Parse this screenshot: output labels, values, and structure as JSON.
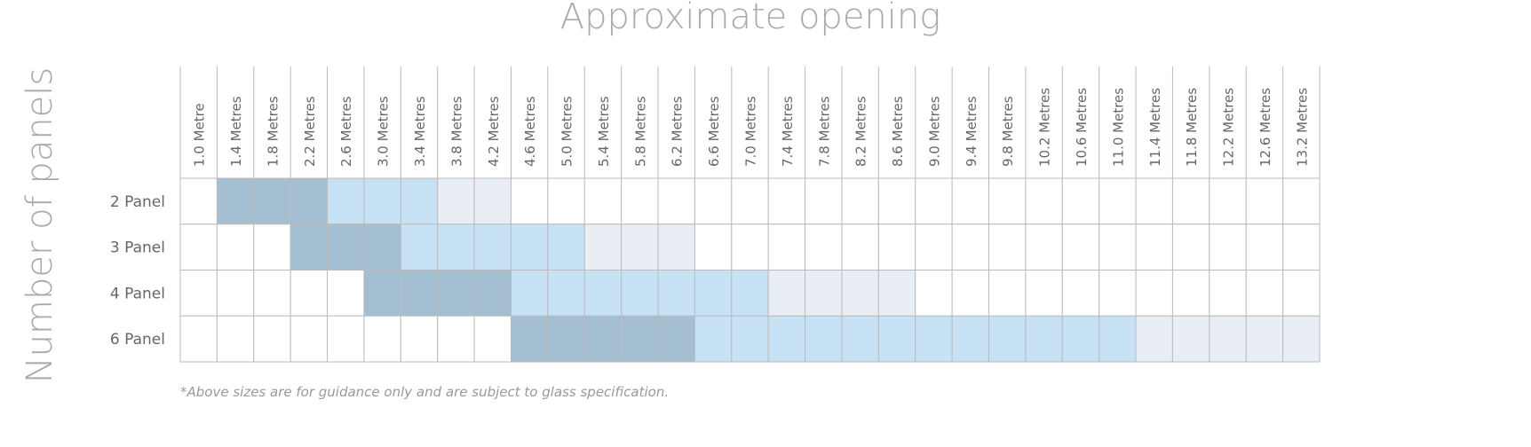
{
  "title": "Approximate opening",
  "side_label": "Number of panels",
  "footnote": "*Above sizes are for guidance only and are subject to glass specification.",
  "table": {
    "columns": [
      "1.0 Metre",
      "1.4 Metres",
      "1.8 Metres",
      "2.2 Metres",
      "2.6 Metres",
      "3.0 Metres",
      "3.4 Metres",
      "3.8 Metres",
      "4.2 Metres",
      "4.6 Metres",
      "5.0 Metres",
      "5.4 Metres",
      "5.8 Metres",
      "6.2 Metres",
      "6.6 Metres",
      "7.0 Metres",
      "7.4 Metres",
      "7.8 Metres",
      "8.2 Metres",
      "8.6 Metres",
      "9.0 Metres",
      "9.4 Metres",
      "9.8 Metres",
      "10.2 Metres",
      "10.6 Metres",
      "11.0 Metres",
      "11.4 Metres",
      "11.8 Metres",
      "12.2 Metres",
      "12.6 Metres",
      "13.2 Metres"
    ],
    "rows": [
      {
        "label": "2 Panel",
        "shades": [
          "#ffffff",
          "#a3bfd1",
          "#a3bfd1",
          "#a3bfd1",
          "#c7e2f5",
          "#c7e2f5",
          "#c7e2f5",
          "#e9edf4",
          "#e9edf4",
          "#ffffff",
          "#ffffff",
          "#ffffff",
          "#ffffff",
          "#ffffff",
          "#ffffff",
          "#ffffff",
          "#ffffff",
          "#ffffff",
          "#ffffff",
          "#ffffff",
          "#ffffff",
          "#ffffff",
          "#ffffff",
          "#ffffff",
          "#ffffff",
          "#ffffff",
          "#ffffff",
          "#ffffff",
          "#ffffff",
          "#ffffff",
          "#ffffff"
        ]
      },
      {
        "label": "3 Panel",
        "shades": [
          "#ffffff",
          "#ffffff",
          "#ffffff",
          "#a3bfd1",
          "#a3bfd1",
          "#a3bfd1",
          "#c7e2f5",
          "#c7e2f5",
          "#c7e2f5",
          "#c7e2f5",
          "#c7e2f5",
          "#e9edf4",
          "#e9edf4",
          "#e9edf4",
          "#ffffff",
          "#ffffff",
          "#ffffff",
          "#ffffff",
          "#ffffff",
          "#ffffff",
          "#ffffff",
          "#ffffff",
          "#ffffff",
          "#ffffff",
          "#ffffff",
          "#ffffff",
          "#ffffff",
          "#ffffff",
          "#ffffff",
          "#ffffff",
          "#ffffff"
        ]
      },
      {
        "label": "4 Panel",
        "shades": [
          "#ffffff",
          "#ffffff",
          "#ffffff",
          "#ffffff",
          "#ffffff",
          "#a3bfd1",
          "#a3bfd1",
          "#a3bfd1",
          "#a3bfd1",
          "#c7e2f5",
          "#c7e2f5",
          "#c7e2f5",
          "#c7e2f5",
          "#c7e2f5",
          "#c7e2f5",
          "#c7e2f5",
          "#e9edf4",
          "#e9edf4",
          "#e9edf4",
          "#e9edf4",
          "#ffffff",
          "#ffffff",
          "#ffffff",
          "#ffffff",
          "#ffffff",
          "#ffffff",
          "#ffffff",
          "#ffffff",
          "#ffffff",
          "#ffffff",
          "#ffffff"
        ]
      },
      {
        "label": "6 Panel",
        "shades": [
          "#ffffff",
          "#ffffff",
          "#ffffff",
          "#ffffff",
          "#ffffff",
          "#ffffff",
          "#ffffff",
          "#ffffff",
          "#ffffff",
          "#a3bfd1",
          "#a3bfd1",
          "#a3bfd1",
          "#a3bfd1",
          "#a3bfd1",
          "#c7e2f5",
          "#c7e2f5",
          "#c7e2f5",
          "#c7e2f5",
          "#c7e2f5",
          "#c7e2f5",
          "#c7e2f5",
          "#c7e2f5",
          "#c7e2f5",
          "#c7e2f5",
          "#c7e2f5",
          "#c7e2f5",
          "#e9edf4",
          "#e9edf4",
          "#e9edf4",
          "#e9edf4",
          "#e9edf4"
        ]
      }
    ]
  }
}
